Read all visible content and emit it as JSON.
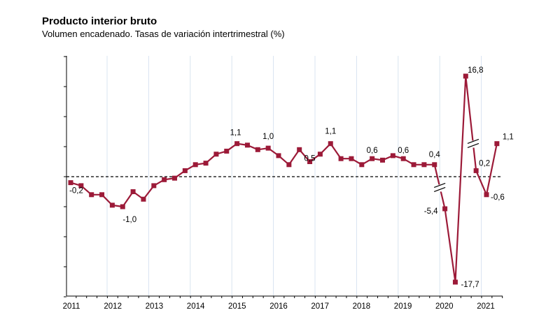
{
  "title": "Producto interior bruto",
  "subtitle": "Volumen encadenado. Tasas de variación intertrimestral (%)",
  "colors": {
    "series": "#9c1a38",
    "grid": "#d8e4f0",
    "axis": "#000000"
  },
  "chart_data": {
    "type": "line",
    "title": "Producto interior bruto",
    "subtitle": "Volumen encadenado. Tasas de variación intertrimestral (%)",
    "xlabel": "",
    "ylabel": "",
    "x_tick_labels": [
      "2011",
      "2012",
      "2013",
      "2014",
      "2015",
      "2016",
      "2017",
      "2018",
      "2019",
      "2020",
      "2021"
    ],
    "ylim": [
      -3.8,
      4.0
    ],
    "axis_breaks": "y axis is compressed for 2020Q2 (-17,7) and 2020Q3 (16,8); break marks drawn on the line",
    "zero_line": "dashed",
    "grid": "vertical lines at each year",
    "x": [
      "2011Q1",
      "2011Q2",
      "2011Q3",
      "2011Q4",
      "2012Q1",
      "2012Q2",
      "2012Q3",
      "2012Q4",
      "2013Q1",
      "2013Q2",
      "2013Q3",
      "2013Q4",
      "2014Q1",
      "2014Q2",
      "2014Q3",
      "2014Q4",
      "2015Q1",
      "2015Q2",
      "2015Q3",
      "2015Q4",
      "2016Q1",
      "2016Q2",
      "2016Q3",
      "2016Q4",
      "2017Q1",
      "2017Q2",
      "2017Q3",
      "2017Q4",
      "2018Q1",
      "2018Q2",
      "2018Q3",
      "2018Q4",
      "2019Q1",
      "2019Q2",
      "2019Q3",
      "2019Q4",
      "2020Q1",
      "2020Q2",
      "2020Q3",
      "2020Q4",
      "2021Q1",
      "2021Q2"
    ],
    "values": [
      -0.2,
      -0.3,
      -0.6,
      -0.6,
      -0.95,
      -1.0,
      -0.5,
      -0.75,
      -0.3,
      -0.1,
      -0.05,
      0.2,
      0.4,
      0.45,
      0.75,
      0.85,
      1.1,
      1.05,
      0.9,
      0.95,
      0.7,
      0.4,
      0.9,
      0.5,
      0.75,
      1.1,
      0.6,
      0.6,
      0.4,
      0.6,
      0.55,
      0.7,
      0.6,
      0.4,
      0.4,
      0.4,
      -5.4,
      -17.7,
      16.8,
      0.2,
      -0.6,
      1.1
    ],
    "data_labels": [
      {
        "index": 0,
        "text": "-0,2"
      },
      {
        "index": 5,
        "text": "-1,0"
      },
      {
        "index": 16,
        "text": "1,1"
      },
      {
        "index": 19,
        "text": "1,0"
      },
      {
        "index": 23,
        "text": "0,5"
      },
      {
        "index": 25,
        "text": "1,1"
      },
      {
        "index": 29,
        "text": "0,6"
      },
      {
        "index": 32,
        "text": "0,6"
      },
      {
        "index": 35,
        "text": "0,4"
      },
      {
        "index": 36,
        "text": "-5,4"
      },
      {
        "index": 37,
        "text": "-17,7"
      },
      {
        "index": 38,
        "text": "16,8"
      },
      {
        "index": 39,
        "text": "0,2"
      },
      {
        "index": 40,
        "text": "-0,6"
      },
      {
        "index": 41,
        "text": "1,1"
      }
    ]
  }
}
